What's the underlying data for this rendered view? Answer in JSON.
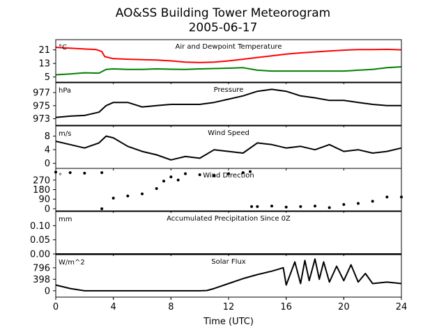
{
  "figure": {
    "title_line1": "AO&SS Building Tower Meteorogram",
    "title_line2": "2005-06-17",
    "xlabel": "Time (UTC)"
  },
  "chart_data": [
    {
      "type": "line",
      "title": "Air and Dewpoint Temperature",
      "unit": "°C",
      "xlim": [
        0,
        24
      ],
      "ylim": [
        2,
        27
      ],
      "yticks": [
        5,
        13,
        21
      ],
      "series": [
        {
          "color": "#ff0000",
          "x": [
            0,
            1,
            2,
            2.8,
            3.2,
            3.4,
            4,
            5,
            6,
            7,
            8,
            9,
            10,
            11,
            12,
            13,
            14,
            15,
            16,
            17,
            18,
            19,
            20,
            21,
            22,
            23,
            24
          ],
          "values": [
            22.5,
            22,
            21.5,
            21.2,
            20,
            17,
            15.8,
            15.5,
            15.2,
            15,
            14.5,
            13.8,
            13.5,
            13.8,
            14.5,
            15.5,
            16.5,
            17.5,
            18.5,
            19.2,
            19.8,
            20.3,
            20.8,
            21.2,
            21.2,
            21.3,
            21
          ]
        },
        {
          "color": "#008000",
          "x": [
            0,
            1,
            2,
            3,
            3.5,
            4,
            5,
            6,
            7,
            8,
            9,
            10,
            11,
            12,
            13,
            14,
            15,
            16,
            17,
            18,
            19,
            20,
            21,
            22,
            23,
            24
          ],
          "values": [
            6.3,
            6.8,
            7.5,
            7.3,
            9.5,
            9.8,
            9.5,
            9.5,
            9.8,
            9.6,
            9.5,
            9.8,
            10,
            10.2,
            10.5,
            9,
            8.5,
            8.5,
            8.5,
            8.5,
            8.5,
            8.5,
            9,
            9.5,
            10.5,
            11
          ]
        }
      ]
    },
    {
      "type": "line",
      "title": "Pressure",
      "unit": "hPa",
      "xlim": [
        0,
        24
      ],
      "ylim": [
        972,
        978.5
      ],
      "yticks": [
        973,
        975,
        977
      ],
      "series": [
        {
          "color": "#000000",
          "x": [
            0,
            1,
            2,
            3,
            3.5,
            4,
            5,
            6,
            7,
            8,
            9,
            10,
            11,
            12,
            13,
            14,
            15,
            16,
            17,
            18,
            19,
            20,
            21,
            22,
            23,
            24
          ],
          "values": [
            973.2,
            973.4,
            973.5,
            974,
            975,
            975.5,
            975.5,
            974.8,
            975,
            975.2,
            975.2,
            975.2,
            975.5,
            976,
            976.5,
            977.2,
            977.5,
            977.2,
            976.5,
            976.2,
            975.8,
            975.8,
            975.5,
            975.2,
            975,
            975
          ]
        }
      ]
    },
    {
      "type": "line",
      "title": "Wind Speed",
      "unit": "m/s",
      "xlim": [
        0,
        24
      ],
      "ylim": [
        -1.5,
        11
      ],
      "yticks": [
        0,
        4,
        8
      ],
      "series": [
        {
          "color": "#000000",
          "x": [
            0,
            1,
            2,
            3,
            3.5,
            4,
            5,
            6,
            7,
            8,
            9,
            10,
            11,
            12,
            13,
            14,
            15,
            16,
            17,
            18,
            19,
            20,
            21,
            22,
            23,
            24
          ],
          "values": [
            6.5,
            5.5,
            4.5,
            6,
            8,
            7.5,
            5,
            3.5,
            2.5,
            1,
            2,
            1.5,
            4,
            3.5,
            3,
            6,
            5.5,
            4.5,
            5,
            4,
            5.5,
            3.5,
            4,
            3,
            3.5,
            4.5
          ]
        }
      ]
    },
    {
      "type": "scatter",
      "title": "Wind Direction",
      "unit": "°",
      "xlim": [
        0,
        24
      ],
      "ylim": [
        -20,
        380
      ],
      "yticks": [
        0,
        90,
        180,
        270
      ],
      "series": [
        {
          "color": "#000000",
          "x": [
            0,
            1,
            2,
            3.2,
            3.2,
            4,
            5,
            6,
            7,
            7.5,
            8,
            8.5,
            9,
            10,
            11,
            12,
            13,
            13.5,
            13.6,
            14,
            15,
            16,
            17,
            18,
            19,
            20,
            21,
            22,
            23,
            24
          ],
          "values": [
            345,
            340,
            335,
            340,
            0,
            100,
            120,
            140,
            190,
            260,
            300,
            270,
            330,
            320,
            310,
            330,
            340,
            350,
            20,
            20,
            25,
            15,
            20,
            25,
            10,
            40,
            50,
            70,
            110,
            110
          ]
        }
      ]
    },
    {
      "type": "line",
      "title": "Accumulated Precipitation Since 0Z",
      "unit": "mm",
      "xlim": [
        0,
        24
      ],
      "ylim": [
        0,
        0.15
      ],
      "yticks": [
        0.0,
        0.05,
        0.1
      ],
      "ytick_labels": [
        "0.00",
        "0.05",
        "0.10"
      ],
      "series": [
        {
          "color": "#000000",
          "x": [
            0,
            24
          ],
          "values": [
            0,
            0
          ]
        }
      ]
    },
    {
      "type": "line",
      "title": "Solar Flux",
      "unit": "W/m^2",
      "xlim": [
        0,
        24
      ],
      "ylim": [
        -220,
        1250
      ],
      "yticks": [
        0,
        398,
        796
      ],
      "series": [
        {
          "color": "#000000",
          "x": [
            0,
            1,
            2,
            4,
            6,
            8,
            10,
            10.5,
            11,
            12,
            13,
            14,
            15,
            15.5,
            15.8,
            16,
            16.3,
            16.6,
            17,
            17.3,
            17.6,
            18,
            18.3,
            18.6,
            19,
            19.5,
            20,
            20.5,
            21,
            21.5,
            22,
            23,
            24
          ],
          "values": [
            200,
            80,
            0,
            0,
            0,
            0,
            0,
            10,
            80,
            250,
            420,
            560,
            680,
            750,
            800,
            200,
            600,
            1000,
            250,
            1050,
            350,
            1100,
            400,
            1000,
            300,
            850,
            350,
            900,
            300,
            600,
            250,
            300,
            250
          ]
        }
      ]
    }
  ],
  "xaxis": {
    "ticks": [
      0,
      4,
      8,
      12,
      16,
      20,
      24
    ]
  }
}
